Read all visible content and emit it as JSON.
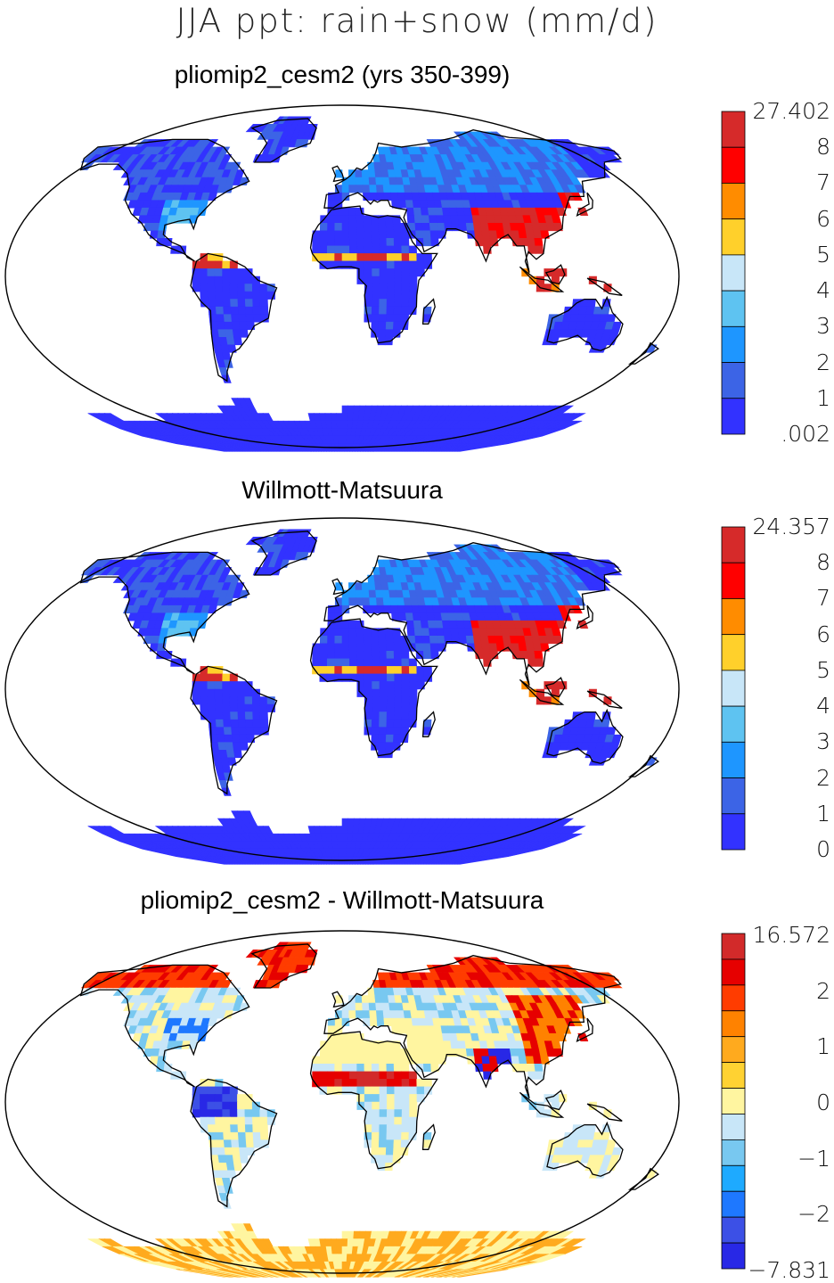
{
  "title": "JJA ppt: rain+snow (mm/d)",
  "panels": [
    {
      "id": "model",
      "title": "pliomip2_cesm2 (yrs 350-399)",
      "colorbar": {
        "labels": [
          "27.402",
          "8",
          "7",
          "6",
          "5",
          "4",
          "3",
          "2",
          "1",
          ".002"
        ],
        "colors": [
          "#d62a2a",
          "#ff0000",
          "#ff8c00",
          "#ffd02b",
          "#c8e6f8",
          "#5ec3f1",
          "#1e96ff",
          "#3c64e6",
          "#3232ff"
        ]
      }
    },
    {
      "id": "obs",
      "title": "Willmott-Matsuura",
      "colorbar": {
        "labels": [
          "24.357",
          "8",
          "7",
          "6",
          "5",
          "4",
          "3",
          "2",
          "1",
          "0"
        ],
        "colors": [
          "#d62a2a",
          "#ff0000",
          "#ff8c00",
          "#ffd02b",
          "#c8e6f8",
          "#5ec3f1",
          "#1e96ff",
          "#3c64e6",
          "#3232ff"
        ]
      }
    },
    {
      "id": "diff",
      "title": "pliomip2_cesm2 - Willmott-Matsuura",
      "colorbar": {
        "labels": [
          "16.572",
          "",
          "2",
          "",
          "1",
          "",
          "0",
          "",
          "−1",
          "",
          "−2",
          "",
          "−7.831"
        ],
        "colors": [
          "#d22a2a",
          "#e60000",
          "#ff3c00",
          "#ff8200",
          "#ffaa1e",
          "#ffd232",
          "#fff5a0",
          "#c8e6f8",
          "#78c8f0",
          "#1eaaff",
          "#1e78ff",
          "#3c50e6",
          "#2828e6"
        ]
      }
    }
  ]
}
